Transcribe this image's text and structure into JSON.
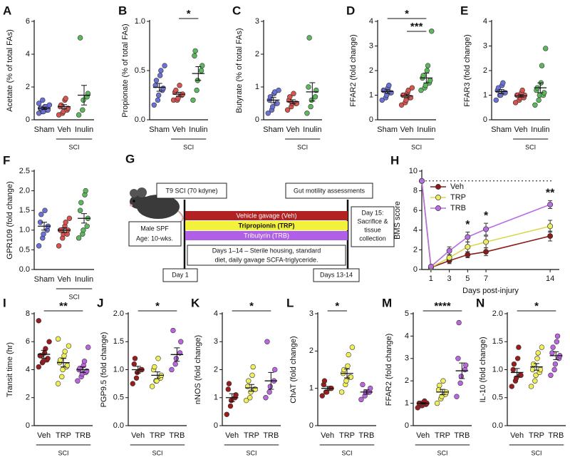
{
  "chart_data": [
    {
      "type": "dot",
      "panel": "A",
      "ylabel": "Acetate (% of total FAs)",
      "ylim": [
        0,
        6
      ],
      "yticks": [
        0,
        2,
        4,
        6
      ],
      "series": [
        {
          "name": "Sham",
          "color": "#6a72d8",
          "values": [
            0.4,
            0.5,
            0.5,
            0.6,
            0.6,
            0.7,
            0.7,
            0.8,
            0.8,
            0.9,
            1.0,
            1.2
          ],
          "mean": 0.7,
          "sem": 0.07
        },
        {
          "name": "Veh",
          "color": "#d9534f",
          "values": [
            0.3,
            0.4,
            0.5,
            0.6,
            0.7,
            0.8,
            0.9,
            1.2,
            1.3
          ],
          "mean": 0.8,
          "sem": 0.12
        },
        {
          "name": "Inulin",
          "color": "#5cb85c",
          "values": [
            0.3,
            0.6,
            1.2,
            1.4,
            1.6,
            5.0
          ],
          "mean": 1.5,
          "sem": 0.6
        }
      ],
      "group_label": "SCI",
      "group_span": [
        "Veh",
        "Inulin"
      ],
      "significance": []
    },
    {
      "type": "dot",
      "panel": "B",
      "ylabel": "Propionate (% of total FAs)",
      "ylim": [
        0,
        1
      ],
      "yticks": [
        {
          "value": 0,
          "label": "0.0"
        },
        0.5,
        {
          "value": 1,
          "label": "1.0"
        }
      ],
      "series": [
        {
          "name": "Sham",
          "color": "#6a72d8",
          "values": [
            0.15,
            0.2,
            0.25,
            0.3,
            0.32,
            0.35,
            0.4,
            0.45,
            0.5,
            0.55
          ],
          "mean": 0.33,
          "sem": 0.04
        },
        {
          "name": "Veh",
          "color": "#d9534f",
          "values": [
            0.2,
            0.2,
            0.22,
            0.25,
            0.26,
            0.28,
            0.3,
            0.35
          ],
          "mean": 0.26,
          "sem": 0.02
        },
        {
          "name": "Inulin",
          "color": "#5cb85c",
          "values": [
            0.2,
            0.3,
            0.4,
            0.5,
            0.55,
            0.65,
            0.7
          ],
          "mean": 0.47,
          "sem": 0.07
        }
      ],
      "group_label": "SCI",
      "group_span": [
        "Veh",
        "Inulin"
      ],
      "significance": [
        {
          "label": "*",
          "between": [
            "Veh",
            "Inulin"
          ]
        }
      ]
    },
    {
      "type": "dot",
      "panel": "C",
      "ylabel": "Butyrate (% of total FAs)",
      "ylim": [
        0,
        3
      ],
      "yticks": [
        0,
        1,
        2,
        3
      ],
      "series": [
        {
          "name": "Sham",
          "color": "#6a72d8",
          "values": [
            0.2,
            0.3,
            0.4,
            0.5,
            0.5,
            0.6,
            0.7,
            0.8,
            0.85,
            0.9
          ],
          "mean": 0.6,
          "sem": 0.08
        },
        {
          "name": "Veh",
          "color": "#d9534f",
          "values": [
            0.3,
            0.4,
            0.5,
            0.5,
            0.5,
            0.6,
            0.7,
            0.8
          ],
          "mean": 0.55,
          "sem": 0.06
        },
        {
          "name": "Inulin",
          "color": "#5cb85c",
          "values": [
            0.2,
            0.4,
            0.6,
            0.7,
            0.9,
            1.0,
            2.5
          ],
          "mean": 0.85,
          "sem": 0.28
        }
      ],
      "group_label": "SCI",
      "group_span": [
        "Veh",
        "Inulin"
      ],
      "significance": []
    },
    {
      "type": "dot",
      "panel": "D",
      "ylabel": "FFAR2 (fold change)",
      "ylim": [
        0,
        4
      ],
      "yticks": [
        0,
        1,
        2,
        3,
        4
      ],
      "series": [
        {
          "name": "Sham",
          "color": "#6a72d8",
          "values": [
            0.8,
            0.9,
            1.0,
            1.1,
            1.1,
            1.2,
            1.2,
            1.3,
            1.4
          ],
          "mean": 1.15,
          "sem": 0.07
        },
        {
          "name": "Veh",
          "color": "#d9534f",
          "values": [
            0.6,
            0.7,
            0.8,
            0.9,
            0.9,
            1.0,
            1.0,
            1.1,
            1.2,
            1.3
          ],
          "mean": 0.97,
          "sem": 0.07
        },
        {
          "name": "Inulin",
          "color": "#5cb85c",
          "values": [
            1.2,
            1.3,
            1.4,
            1.5,
            1.6,
            1.7,
            1.8,
            2.0,
            2.2,
            3.6
          ],
          "mean": 1.7,
          "sem": 0.2
        }
      ],
      "group_label": "SCI",
      "group_span": [
        "Veh",
        "Inulin"
      ],
      "significance": [
        {
          "label": "*",
          "between": [
            "Sham",
            "Inulin"
          ]
        },
        {
          "label": "***",
          "between": [
            "Veh",
            "Inulin"
          ]
        }
      ]
    },
    {
      "type": "dot",
      "panel": "E",
      "ylabel": "FFAR3 (fold change)",
      "ylim": [
        0,
        4
      ],
      "yticks": [
        0,
        1,
        2,
        3,
        4
      ],
      "series": [
        {
          "name": "Sham",
          "color": "#6a72d8",
          "values": [
            0.8,
            1.0,
            1.0,
            1.1,
            1.1,
            1.2,
            1.3,
            1.4,
            1.5
          ],
          "mean": 1.15,
          "sem": 0.08
        },
        {
          "name": "Veh",
          "color": "#d9534f",
          "values": [
            0.7,
            0.8,
            0.9,
            0.9,
            1.0,
            1.0,
            1.0,
            1.1,
            1.2
          ],
          "mean": 0.97,
          "sem": 0.05
        },
        {
          "name": "Inulin",
          "color": "#5cb85c",
          "values": [
            0.6,
            0.8,
            1.0,
            1.0,
            1.1,
            1.2,
            1.3,
            1.5,
            2.2,
            2.9
          ],
          "mean": 1.3,
          "sem": 0.2
        }
      ],
      "group_label": "SCI",
      "group_span": [
        "Veh",
        "Inulin"
      ],
      "significance": []
    },
    {
      "type": "dot",
      "panel": "F",
      "ylabel": "GPR109 (fold change)",
      "ylim": [
        0,
        2.5
      ],
      "yticks": [
        {
          "value": 0,
          "label": "0.0"
        },
        0.5,
        {
          "value": 1,
          "label": "1.0"
        },
        1.5,
        {
          "value": 2,
          "label": "2.0"
        },
        2.5
      ],
      "series": [
        {
          "name": "Sham",
          "color": "#6a72d8",
          "values": [
            0.6,
            0.8,
            0.9,
            1.0,
            1.1,
            1.2,
            1.4,
            1.5
          ],
          "mean": 1.1,
          "sem": 0.1
        },
        {
          "name": "Veh",
          "color": "#d9534f",
          "values": [
            0.6,
            0.8,
            0.9,
            0.9,
            1.0,
            1.0,
            1.0,
            1.1,
            1.2,
            1.3
          ],
          "mean": 1.0,
          "sem": 0.06
        },
        {
          "name": "Inulin",
          "color": "#5cb85c",
          "values": [
            0.8,
            0.9,
            1.0,
            1.1,
            1.3,
            1.5,
            1.7,
            1.9,
            2.0
          ],
          "mean": 1.3,
          "sem": 0.12
        }
      ],
      "group_label": "SCI",
      "group_span": [
        "Veh",
        "Inulin"
      ],
      "significance": []
    },
    {
      "type": "line",
      "panel": "H",
      "ylabel": "BMS score",
      "xlabel": "Days post-injury",
      "x": [
        0,
        1,
        3,
        5,
        7,
        14
      ],
      "xlim": [
        0,
        15
      ],
      "xticks": [
        1,
        3,
        5,
        7,
        14
      ],
      "ylim": [
        0,
        10
      ],
      "yticks": [
        0,
        2,
        4,
        6,
        8,
        10
      ],
      "reference_line": 9,
      "legend": "upper left",
      "series": [
        {
          "name": "Veh",
          "color": "#8b1a1a",
          "values": [
            9,
            0.2,
            0.9,
            1.5,
            1.8,
            3.4
          ],
          "errors": [
            0,
            0.1,
            0.3,
            0.3,
            0.4,
            0.5
          ]
        },
        {
          "name": "TRP",
          "color": "#eded60",
          "values": [
            9,
            0.2,
            1.2,
            2.3,
            2.8,
            4.4
          ],
          "errors": [
            0,
            0.1,
            0.3,
            0.5,
            0.6,
            0.6
          ]
        },
        {
          "name": "TRB",
          "color": "#b86ee0",
          "values": [
            9,
            0.3,
            1.9,
            3.3,
            4.1,
            6.6
          ],
          "errors": [
            0,
            0.1,
            0.4,
            0.5,
            0.6,
            0.4
          ]
        }
      ],
      "annotations": [
        {
          "x": 5,
          "label": "*"
        },
        {
          "x": 7,
          "label": "*"
        },
        {
          "x": 14,
          "label": "**"
        }
      ]
    },
    {
      "type": "dot",
      "panel": "I",
      "ylabel": "Transit time (hr)",
      "ylim": [
        0,
        8
      ],
      "yticks": [
        0,
        2,
        4,
        6,
        8
      ],
      "series": [
        {
          "name": "Veh",
          "color": "#9b1c1c",
          "values": [
            4.2,
            4.5,
            4.6,
            4.7,
            4.8,
            5.0,
            5.0,
            5.2,
            5.5,
            6.0,
            7.5
          ],
          "mean": 5.1,
          "sem": 0.28
        },
        {
          "name": "TRP",
          "color": "#f0ef5a",
          "values": [
            3.0,
            3.5,
            4.0,
            4.2,
            4.3,
            4.5,
            4.7,
            5.0,
            5.3,
            5.7,
            6.2
          ],
          "mean": 4.5,
          "sem": 0.3
        },
        {
          "name": "TRB",
          "color": "#b966e0",
          "values": [
            3.2,
            3.5,
            3.7,
            3.8,
            3.9,
            4.0,
            4.1,
            4.3,
            4.6,
            5.6
          ],
          "mean": 4.0,
          "sem": 0.2
        }
      ],
      "group_label": "SCI",
      "group_span": [
        "Veh",
        "TRB"
      ],
      "significance": [
        {
          "label": "**",
          "between": [
            "Veh",
            "TRB"
          ]
        }
      ]
    },
    {
      "type": "dot",
      "panel": "J",
      "ylabel": "PGP9.5 (fold change)",
      "ylim": [
        0,
        2
      ],
      "yticks": [
        {
          "value": 0,
          "label": "0.0"
        },
        0.5,
        {
          "value": 1,
          "label": "1.0"
        },
        1.5,
        {
          "value": 2,
          "label": "2.0"
        }
      ],
      "series": [
        {
          "name": "Veh",
          "color": "#9b1c1c",
          "values": [
            0.75,
            0.85,
            0.95,
            1.0,
            1.0,
            1.1,
            1.2
          ],
          "mean": 1.0,
          "sem": 0.06
        },
        {
          "name": "TRP",
          "color": "#f0ef5a",
          "values": [
            0.7,
            0.8,
            0.8,
            0.85,
            0.9,
            1.0,
            1.05,
            1.2
          ],
          "mean": 0.9,
          "sem": 0.06
        },
        {
          "name": "TRB",
          "color": "#b966e0",
          "values": [
            1.0,
            1.1,
            1.2,
            1.3,
            1.5,
            1.7
          ],
          "mean": 1.27,
          "sem": 0.12
        }
      ],
      "group_label": "SCI",
      "group_span": [
        "Veh",
        "TRB"
      ],
      "significance": [
        {
          "label": "*",
          "between": [
            "Veh",
            "TRB"
          ]
        }
      ]
    },
    {
      "type": "dot",
      "panel": "K",
      "ylabel": "nNOS (fold change)",
      "ylim": [
        0,
        4
      ],
      "yticks": [
        0,
        1,
        2,
        3,
        4
      ],
      "series": [
        {
          "name": "Veh",
          "color": "#9b1c1c",
          "values": [
            0.4,
            0.7,
            0.9,
            1.0,
            1.1,
            1.3,
            1.5
          ],
          "mean": 1.0,
          "sem": 0.14
        },
        {
          "name": "TRP",
          "color": "#f0ef5a",
          "values": [
            0.9,
            1.0,
            1.2,
            1.3,
            1.3,
            1.4,
            1.6,
            1.8,
            2.1
          ],
          "mean": 1.35,
          "sem": 0.12
        },
        {
          "name": "TRB",
          "color": "#b966e0",
          "values": [
            1.0,
            1.2,
            1.4,
            1.6,
            2.0,
            3.0
          ],
          "mean": 1.6,
          "sem": 0.3
        }
      ],
      "group_label": "SCI",
      "group_span": [
        "Veh",
        "TRB"
      ],
      "significance": [
        {
          "label": "*",
          "between": [
            "Veh",
            "TRB"
          ]
        }
      ]
    },
    {
      "type": "dot",
      "panel": "L",
      "ylabel": "ChAT (fold change)",
      "ylim": [
        0,
        3
      ],
      "yticks": [
        0,
        1,
        2,
        3
      ],
      "series": [
        {
          "name": "Veh",
          "color": "#9b1c1c",
          "values": [
            0.8,
            0.9,
            0.9,
            1.0,
            1.0,
            1.1,
            1.2
          ],
          "mean": 1.0,
          "sem": 0.05
        },
        {
          "name": "TRP",
          "color": "#f0ef5a",
          "values": [
            0.9,
            1.1,
            1.2,
            1.3,
            1.3,
            1.4,
            1.5,
            1.6,
            1.9,
            2.1
          ],
          "mean": 1.4,
          "sem": 0.12
        },
        {
          "name": "TRB",
          "color": "#b966e0",
          "values": [
            0.7,
            0.8,
            0.9,
            0.9,
            1.0,
            1.1
          ],
          "mean": 0.9,
          "sem": 0.06
        }
      ],
      "group_label": "SCI",
      "group_span": [
        "Veh",
        "TRB"
      ],
      "significance": [
        {
          "label": "*",
          "between": [
            "Veh",
            "TRP"
          ]
        }
      ]
    },
    {
      "type": "dot",
      "panel": "M",
      "ylabel": "FFAR2 (fold change)",
      "ylim": [
        0,
        5
      ],
      "yticks": [
        0,
        1,
        2,
        3,
        4,
        5
      ],
      "series": [
        {
          "name": "Veh",
          "color": "#9b1c1c",
          "values": [
            0.8,
            0.9,
            0.9,
            0.95,
            1.0,
            1.0,
            1.0,
            1.05,
            1.1
          ],
          "mean": 1.0,
          "sem": 0.03
        },
        {
          "name": "TRP",
          "color": "#f0ef5a",
          "values": [
            1.0,
            1.2,
            1.3,
            1.4,
            1.5,
            1.6,
            1.8,
            2.0
          ],
          "mean": 1.5,
          "sem": 0.12
        },
        {
          "name": "TRB",
          "color": "#b966e0",
          "values": [
            1.3,
            1.9,
            2.2,
            2.5,
            2.7,
            3.0,
            4.6
          ],
          "mean": 2.45,
          "sem": 0.35
        }
      ],
      "group_label": "SCI",
      "group_span": [
        "Veh",
        "TRB"
      ],
      "significance": [
        {
          "label": "****",
          "between": [
            "Veh",
            "TRB"
          ]
        }
      ]
    },
    {
      "type": "dot",
      "panel": "N",
      "ylabel": "IL-10 (fold change)",
      "ylim": [
        0,
        2
      ],
      "yticks": [
        {
          "value": 0,
          "label": "0.0"
        },
        0.5,
        {
          "value": 1,
          "label": "1.0"
        },
        1.5,
        {
          "value": 2,
          "label": "2.0"
        }
      ],
      "series": [
        {
          "name": "Veh",
          "color": "#9b1c1c",
          "values": [
            0.7,
            0.8,
            0.85,
            0.9,
            0.9,
            1.0,
            1.1,
            1.2,
            1.4
          ],
          "mean": 0.95,
          "sem": 0.07
        },
        {
          "name": "TRP",
          "color": "#f0ef5a",
          "values": [
            0.7,
            0.8,
            0.9,
            0.95,
            1.0,
            1.0,
            1.1,
            1.2,
            1.3,
            1.4
          ],
          "mean": 1.05,
          "sem": 0.06
        },
        {
          "name": "TRB",
          "color": "#b966e0",
          "values": [
            0.9,
            1.0,
            1.1,
            1.2,
            1.25,
            1.3,
            1.4,
            1.5,
            1.6
          ],
          "mean": 1.25,
          "sem": 0.07
        }
      ],
      "group_label": "SCI",
      "group_span": [
        "Veh",
        "TRB"
      ],
      "significance": [
        {
          "label": "*",
          "between": [
            "Veh",
            "TRB"
          ]
        }
      ]
    }
  ],
  "diagram": {
    "panel": "G",
    "injury": "T9 SCI (70 kdyne)",
    "assessment": "Gut motility assessments",
    "treatments": [
      "Vehicle gavage (Veh)",
      "Tripropionin (TRP)",
      "Tributyrin (TRB)"
    ],
    "animal": [
      "Male SPF",
      "Age: 10-wks."
    ],
    "housing": [
      "Days 1–14 – Sterile housing, standard",
      "diet, daily gavage SCFA-triglyceride."
    ],
    "endpoint": [
      "Day 15:",
      "Sacrifice &",
      "tissue",
      "collection"
    ],
    "day_start": "Day 1",
    "day_end": "Days 13-14"
  }
}
